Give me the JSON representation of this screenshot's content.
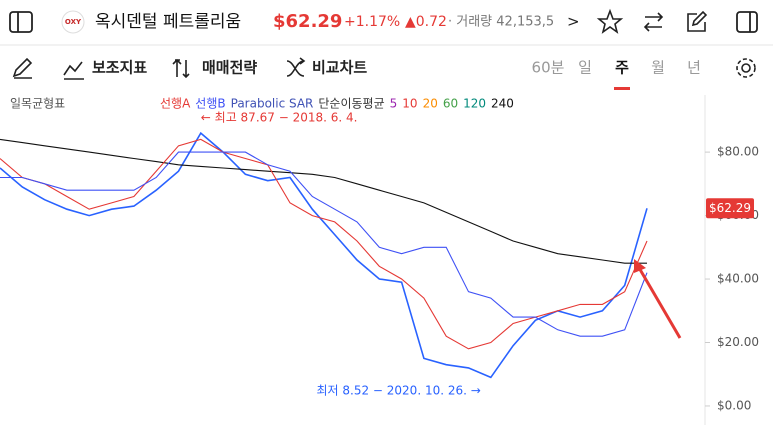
{
  "header": {
    "logo": "OXY",
    "name": "옥시덴털 페트롤리움",
    "price": "$62.29",
    "change_pct": "+1.17%",
    "change": "▲0.72",
    "volume": "· 거래량 42,153,5",
    "more": ">"
  },
  "toolbar": {
    "items": [
      "보조지표",
      "매매전략",
      "비교차트"
    ],
    "periods": [
      "60분",
      "일",
      "주",
      "월",
      "년"
    ],
    "selected_period": 2
  },
  "chart_data": {
    "type": "line",
    "indicator_title": "일목균형표",
    "legend": [
      {
        "name": "선행A",
        "color": "#e53935"
      },
      {
        "name": "선행B",
        "color": "#3f51f5"
      },
      {
        "name": "Parabolic SAR",
        "color": "#3f51b5"
      },
      {
        "name": "단순이동평균",
        "color": "#333333"
      },
      {
        "name": "5",
        "color": "#9c27b0"
      },
      {
        "name": "10",
        "color": "#e53935"
      },
      {
        "name": "20",
        "color": "#fb8c00"
      },
      {
        "name": "60",
        "color": "#43a047"
      },
      {
        "name": "120",
        "color": "#00897b"
      },
      {
        "name": "240",
        "color": "#111111"
      }
    ],
    "series": [
      {
        "name": "price",
        "color": "#2962ff",
        "values": [
          75,
          69,
          65,
          62,
          60,
          62,
          63,
          68,
          74,
          86,
          80,
          73,
          71,
          72,
          62,
          54,
          46,
          40,
          39,
          15,
          13,
          12,
          9,
          19,
          27,
          30,
          28,
          30,
          38,
          62.29
        ]
      },
      {
        "name": "ma240",
        "color": "#111111",
        "values": [
          84,
          83,
          82,
          81,
          80,
          79,
          78,
          77,
          76,
          75.5,
          75,
          74.5,
          74,
          73.5,
          73,
          72,
          70,
          68,
          66,
          64,
          61,
          58,
          55,
          52,
          50,
          48,
          47,
          46,
          45,
          45
        ]
      },
      {
        "name": "spanA",
        "color": "#e53935",
        "values": [
          78,
          72,
          70,
          66,
          62,
          64,
          66,
          74,
          82,
          84,
          80,
          78,
          76,
          64,
          60,
          58,
          52,
          44,
          40,
          34,
          22,
          18,
          20,
          26,
          28,
          30,
          32,
          32,
          36,
          52
        ]
      },
      {
        "name": "spanB",
        "color": "#3f51f5",
        "values": [
          72,
          72,
          70,
          68,
          68,
          68,
          68,
          72,
          80,
          80,
          80,
          80,
          76,
          74,
          66,
          62,
          58,
          50,
          48,
          50,
          50,
          36,
          34,
          28,
          28,
          24,
          22,
          22,
          24,
          42
        ]
      }
    ],
    "price_tag": "$62.29",
    "annotations": [
      {
        "text": "← 최고 87.67 − 2018. 6. 4.",
        "index": 9,
        "value": 87.67
      },
      {
        "text": "최저 8.52 − 2020. 10. 26. →",
        "index": 22,
        "value": 8.52
      }
    ],
    "ylim": [
      -6,
      98
    ],
    "yticks": [
      {
        "value": 0,
        "label": "$0.00"
      },
      {
        "value": 20,
        "label": "$20.00"
      },
      {
        "value": 40,
        "label": "$40.00"
      },
      {
        "value": 60,
        "label": "$60.00"
      },
      {
        "value": 80,
        "label": "$80.00"
      }
    ]
  }
}
